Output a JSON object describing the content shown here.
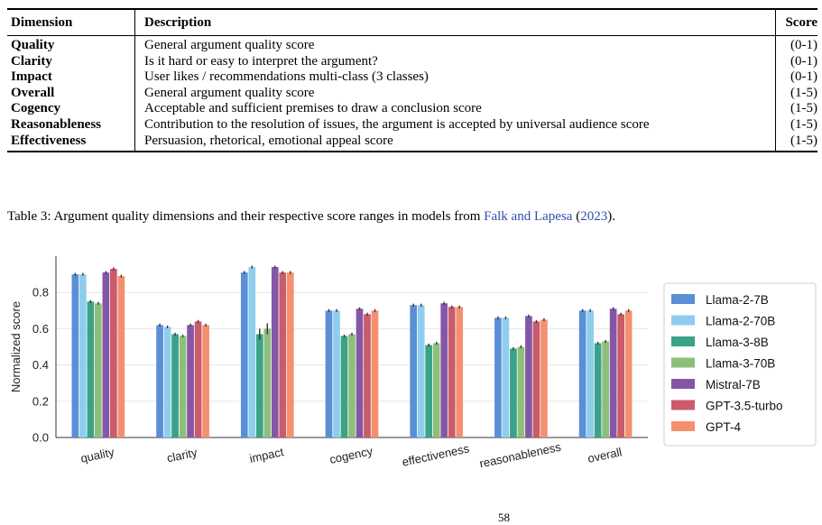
{
  "table": {
    "headers": [
      "Dimension",
      "Description",
      "Score"
    ],
    "rows": [
      {
        "dimension": "Quality",
        "description": "General argument quality score",
        "score": "(0-1)"
      },
      {
        "dimension": "Clarity",
        "description": "Is it hard or easy to interpret the argument?",
        "score": "(0-1)"
      },
      {
        "dimension": "Impact",
        "description": "User likes / recommendations multi-class (3 classes)",
        "score": "(0-1)"
      },
      {
        "dimension": "Overall",
        "description": "General argument quality score",
        "score": "(1-5)"
      },
      {
        "dimension": "Cogency",
        "description": "Acceptable and sufficient premises to draw a conclusion score",
        "score": "(1-5)"
      },
      {
        "dimension": "Reasonableness",
        "description": "Contribution to the resolution of issues, the argument is accepted by universal audience score",
        "score": "(1-5)"
      },
      {
        "dimension": "Effectiveness",
        "description": "Persuasion, rhetorical, emotional appeal score",
        "score": "(1-5)"
      }
    ]
  },
  "caption": {
    "text": "Table 3: Argument quality dimensions and their respective score ranges in models from ",
    "link_authors": "Falk and Lapesa",
    "open_paren": " (",
    "link_year": "2023",
    "close_paren": ")."
  },
  "page_number": "58",
  "chart_data": {
    "type": "bar",
    "categories": [
      "quality",
      "clarity",
      "impact",
      "cogency",
      "effectiveness",
      "reasonableness",
      "overall"
    ],
    "ylabel": "Normalized score",
    "xlabel": "",
    "ylim": [
      0,
      1.0
    ],
    "yticks": [
      "0.0",
      "0.2",
      "0.4",
      "0.6",
      "0.8"
    ],
    "grid": true,
    "legend_position": "right",
    "series": [
      {
        "name": "Llama-2-7B",
        "color": "#5a8fd6",
        "values": [
          0.9,
          0.62,
          0.91,
          0.7,
          0.73,
          0.66,
          0.7
        ]
      },
      {
        "name": "Llama-2-70B",
        "color": "#8fcdee",
        "values": [
          0.9,
          0.61,
          0.94,
          0.7,
          0.73,
          0.66,
          0.7
        ]
      },
      {
        "name": "Llama-3-8B",
        "color": "#3aa287",
        "values": [
          0.75,
          0.57,
          0.57,
          0.56,
          0.51,
          0.49,
          0.52
        ]
      },
      {
        "name": "Llama-3-70B",
        "color": "#8cc07a",
        "values": [
          0.74,
          0.56,
          0.6,
          0.57,
          0.52,
          0.5,
          0.53
        ]
      },
      {
        "name": "Mistral-7B",
        "color": "#8656a6",
        "values": [
          0.91,
          0.62,
          0.94,
          0.71,
          0.74,
          0.67,
          0.71
        ]
      },
      {
        "name": "GPT-3.5-turbo",
        "color": "#c95b6a",
        "values": [
          0.93,
          0.64,
          0.91,
          0.68,
          0.72,
          0.64,
          0.68
        ]
      },
      {
        "name": "GPT-4",
        "color": "#f4906f",
        "values": [
          0.89,
          0.62,
          0.91,
          0.7,
          0.72,
          0.65,
          0.7
        ]
      }
    ]
  }
}
